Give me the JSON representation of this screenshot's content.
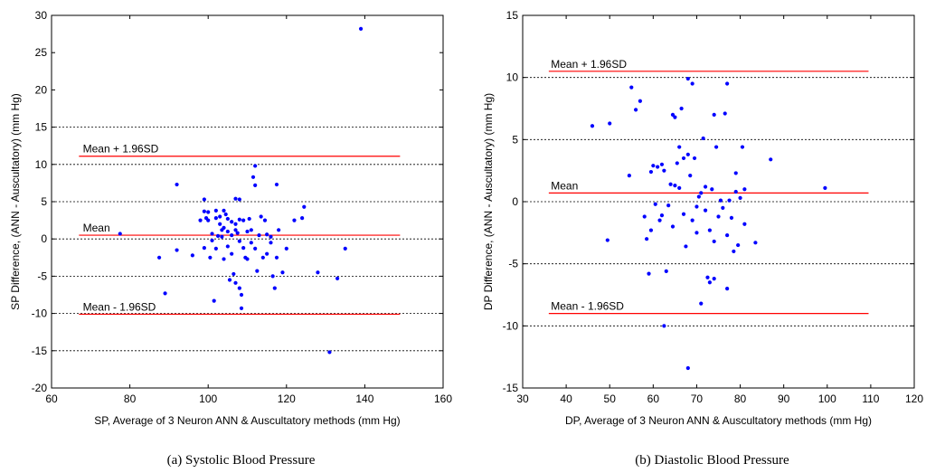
{
  "chart_data": [
    {
      "type": "scatter",
      "caption": "(a) Systolic Blood Pressure",
      "xlabel": "SP, Average of 3 Neuron ANN & Auscultatory methods (mm Hg)",
      "ylabel": "SP Difference, (ANN - Auscultatory) (mm Hg)",
      "xlim": [
        60,
        160
      ],
      "ylim": [
        -20,
        30
      ],
      "xticks": [
        60,
        80,
        100,
        120,
        140,
        160
      ],
      "yticks": [
        -20,
        -15,
        -10,
        -5,
        0,
        5,
        10,
        15,
        20,
        25,
        30
      ],
      "grid_y": [
        -15,
        -10,
        -5,
        0,
        5,
        10,
        15
      ],
      "reference_lines": [
        {
          "label": "Mean + 1.96SD",
          "y": 11.1,
          "x_range": [
            67,
            149
          ],
          "label_x": 68,
          "color": "#ff0000"
        },
        {
          "label": "Mean",
          "y": 0.5,
          "x_range": [
            67,
            149
          ],
          "label_x": 68,
          "color": "#ff0000"
        },
        {
          "label": "Mean - 1.96SD",
          "y": -10.1,
          "x_range": [
            67,
            149
          ],
          "label_x": 68,
          "color": "#ff0000"
        }
      ],
      "point_color": "#0000ff",
      "points": [
        [
          77.5,
          0.7
        ],
        [
          87.5,
          -2.5
        ],
        [
          89,
          -7.3
        ],
        [
          92,
          7.3
        ],
        [
          92,
          -1.5
        ],
        [
          96,
          -2.2
        ],
        [
          98,
          2.5
        ],
        [
          99,
          5.3
        ],
        [
          99,
          3.7
        ],
        [
          99.5,
          2.8
        ],
        [
          99,
          -1.2
        ],
        [
          100,
          3.6
        ],
        [
          100,
          2.5
        ],
        [
          100.5,
          -2.5
        ],
        [
          101,
          0.7
        ],
        [
          101,
          -0.2
        ],
        [
          101.5,
          -8.3
        ],
        [
          102,
          3.8
        ],
        [
          102,
          2.8
        ],
        [
          102,
          -1.3
        ],
        [
          102.5,
          0.4
        ],
        [
          103,
          3.0
        ],
        [
          103,
          2.0
        ],
        [
          103.5,
          1.2
        ],
        [
          103.5,
          0.3
        ],
        [
          104,
          3.8
        ],
        [
          104,
          1.5
        ],
        [
          104,
          -2.7
        ],
        [
          104.5,
          3.3
        ],
        [
          105,
          2.7
        ],
        [
          105,
          1.0
        ],
        [
          105,
          -1.0
        ],
        [
          105.5,
          -5.5
        ],
        [
          106,
          2.3
        ],
        [
          106,
          0.5
        ],
        [
          106,
          -2.0
        ],
        [
          106.5,
          -4.7
        ],
        [
          107,
          5.4
        ],
        [
          107,
          2.0
        ],
        [
          107,
          1.2
        ],
        [
          107,
          -5.9
        ],
        [
          107.5,
          0.8
        ],
        [
          108,
          5.3
        ],
        [
          108,
          2.6
        ],
        [
          108,
          -0.3
        ],
        [
          108,
          -6.6
        ],
        [
          108.5,
          -7.5
        ],
        [
          108.5,
          -9.3
        ],
        [
          109,
          2.5
        ],
        [
          109,
          -1.2
        ],
        [
          109.5,
          -2.5
        ],
        [
          110,
          1.0
        ],
        [
          110,
          -2.7
        ],
        [
          110.5,
          2.7
        ],
        [
          111,
          1.2
        ],
        [
          111,
          -0.5
        ],
        [
          111.5,
          8.3
        ],
        [
          112,
          9.8
        ],
        [
          112,
          7.2
        ],
        [
          112,
          -1.3
        ],
        [
          112.5,
          -4.3
        ],
        [
          113,
          0.5
        ],
        [
          113.5,
          3.0
        ],
        [
          114,
          -2.5
        ],
        [
          114.5,
          2.5
        ],
        [
          115,
          0.6
        ],
        [
          115,
          -2.0
        ],
        [
          116,
          0.3
        ],
        [
          116,
          -0.5
        ],
        [
          116.5,
          -5.0
        ],
        [
          117,
          -6.6
        ],
        [
          117.5,
          -2.5
        ],
        [
          117.5,
          7.3
        ],
        [
          118,
          1.2
        ],
        [
          119,
          -4.5
        ],
        [
          120,
          -1.3
        ],
        [
          122,
          2.5
        ],
        [
          124,
          2.8
        ],
        [
          124.5,
          4.3
        ],
        [
          128,
          -4.5
        ],
        [
          131,
          -15.2
        ],
        [
          133,
          -5.3
        ],
        [
          135,
          -1.3
        ],
        [
          139,
          28.2
        ]
      ]
    },
    {
      "type": "scatter",
      "caption": "(b) Diastolic Blood Pressure",
      "xlabel": "DP, Average of 3 Neuron ANN & Auscultatory methods (mm Hg)",
      "ylabel": "DP Difference, (ANN - Auscultatory) (mm Hg)",
      "xlim": [
        30,
        120
      ],
      "ylim": [
        -15,
        15
      ],
      "xticks": [
        30,
        40,
        50,
        60,
        70,
        80,
        90,
        100,
        110,
        120
      ],
      "yticks": [
        -15,
        -10,
        -5,
        0,
        5,
        10,
        15
      ],
      "grid_y": [
        -10,
        -5,
        0,
        5,
        10
      ],
      "reference_lines": [
        {
          "label": "Mean + 1.96SD",
          "y": 10.5,
          "x_range": [
            36,
            109.5
          ],
          "label_x": 36.5,
          "color": "#ff0000"
        },
        {
          "label": "Mean",
          "y": 0.7,
          "x_range": [
            36,
            109.5
          ],
          "label_x": 36.5,
          "color": "#ff0000"
        },
        {
          "label": "Mean - 1.96SD",
          "y": -9.0,
          "x_range": [
            36,
            109.5
          ],
          "label_x": 36.5,
          "color": "#ff0000"
        }
      ],
      "point_color": "#0000ff",
      "points": [
        [
          46,
          6.1
        ],
        [
          49.5,
          -3.1
        ],
        [
          50,
          6.3
        ],
        [
          54.5,
          2.1
        ],
        [
          55,
          9.2
        ],
        [
          56,
          7.4
        ],
        [
          57,
          8.1
        ],
        [
          58,
          -1.2
        ],
        [
          58.5,
          -3.0
        ],
        [
          59,
          -5.8
        ],
        [
          59.5,
          -2.3
        ],
        [
          59.5,
          2.4
        ],
        [
          60,
          2.9
        ],
        [
          60.5,
          -0.2
        ],
        [
          61,
          2.8
        ],
        [
          61.5,
          -1.5
        ],
        [
          62,
          -1.1
        ],
        [
          62,
          3.0
        ],
        [
          62.5,
          2.5
        ],
        [
          62.5,
          -10.0
        ],
        [
          63,
          -5.6
        ],
        [
          63.5,
          -0.3
        ],
        [
          64,
          1.4
        ],
        [
          64.5,
          7.0
        ],
        [
          64.5,
          -2.0
        ],
        [
          65,
          6.8
        ],
        [
          65,
          1.3
        ],
        [
          65.5,
          3.1
        ],
        [
          66,
          4.4
        ],
        [
          66,
          1.1
        ],
        [
          66.5,
          7.5
        ],
        [
          67,
          3.5
        ],
        [
          67,
          -1.0
        ],
        [
          67.5,
          -3.6
        ],
        [
          68,
          9.9
        ],
        [
          68,
          3.8
        ],
        [
          68,
          -13.4
        ],
        [
          68.5,
          2.1
        ],
        [
          69,
          9.5
        ],
        [
          69,
          -1.5
        ],
        [
          69.5,
          3.5
        ],
        [
          70,
          -0.4
        ],
        [
          70,
          -2.5
        ],
        [
          70.5,
          0.4
        ],
        [
          71,
          -8.2
        ],
        [
          71,
          0.7
        ],
        [
          71.5,
          5.1
        ],
        [
          72,
          1.2
        ],
        [
          72,
          -0.7
        ],
        [
          72.5,
          -6.1
        ],
        [
          73,
          -6.5
        ],
        [
          73,
          -2.3
        ],
        [
          73.5,
          1.0
        ],
        [
          74,
          7.0
        ],
        [
          74,
          -3.2
        ],
        [
          74,
          -6.2
        ],
        [
          74.5,
          4.4
        ],
        [
          75,
          -1.2
        ],
        [
          75.5,
          0.1
        ],
        [
          76,
          -0.5
        ],
        [
          76.5,
          7.1
        ],
        [
          77,
          9.5
        ],
        [
          77,
          -2.7
        ],
        [
          77,
          -7.0
        ],
        [
          77.5,
          0.1
        ],
        [
          78,
          -1.3
        ],
        [
          78.5,
          -4.0
        ],
        [
          79,
          0.8
        ],
        [
          79,
          2.3
        ],
        [
          79.5,
          -3.5
        ],
        [
          80,
          0.3
        ],
        [
          80.5,
          4.4
        ],
        [
          81,
          -1.8
        ],
        [
          81,
          1.0
        ],
        [
          83.5,
          -3.3
        ],
        [
          87,
          3.4
        ],
        [
          99.5,
          1.1
        ]
      ]
    }
  ]
}
